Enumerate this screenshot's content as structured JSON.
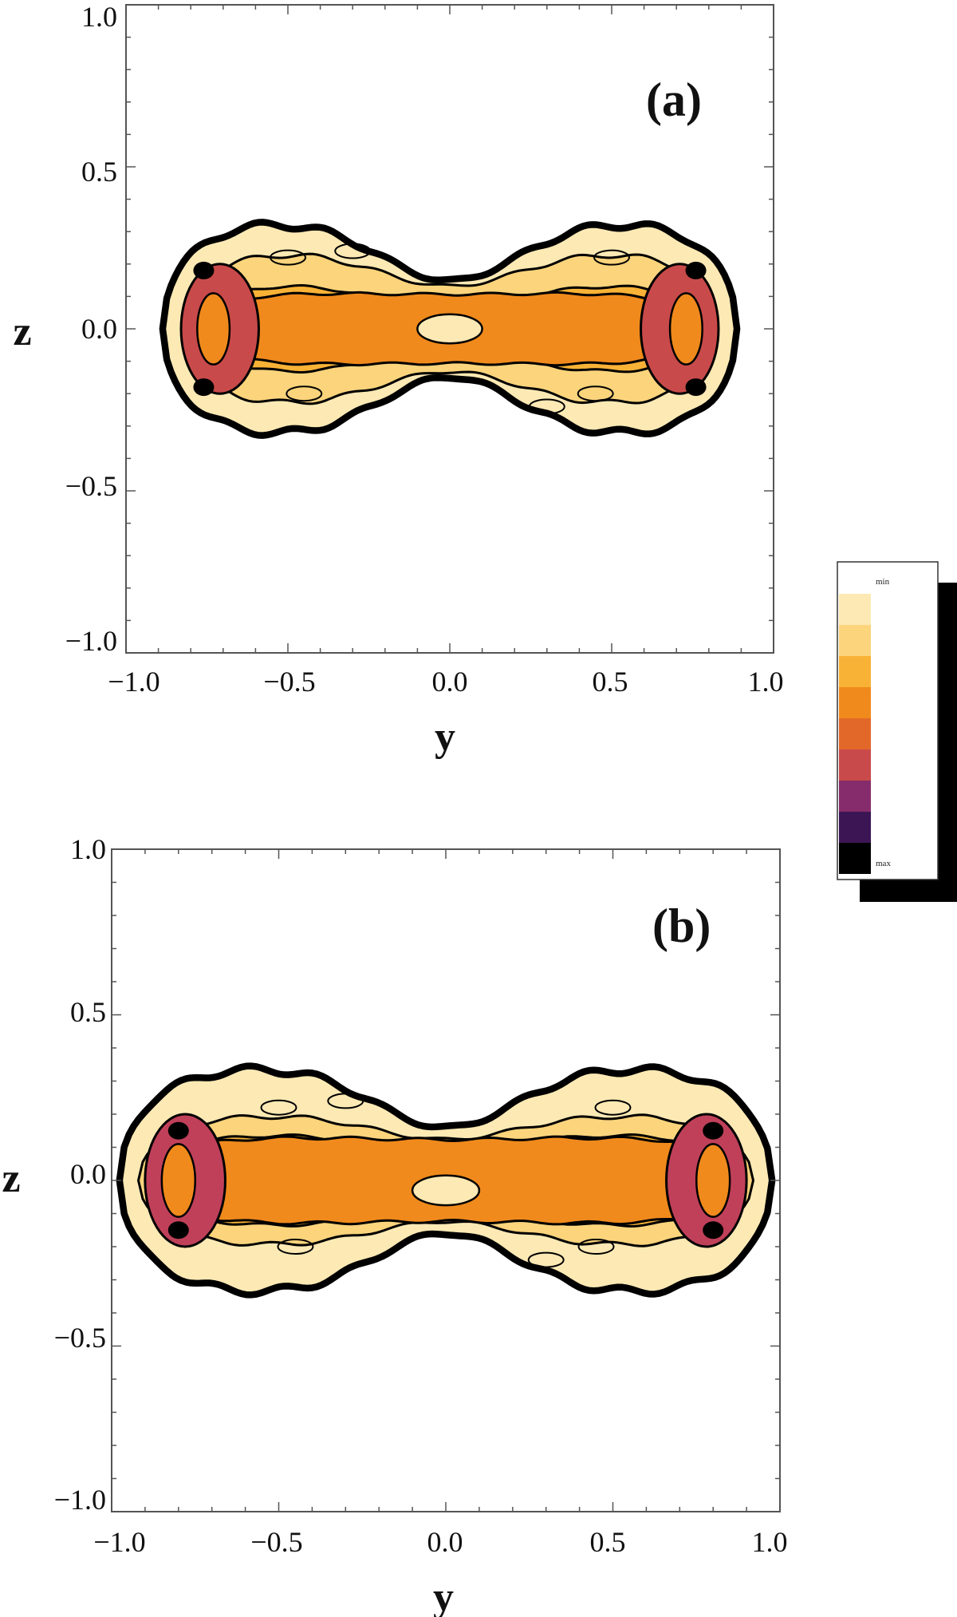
{
  "chart_data": [
    {
      "type": "heatmap",
      "panel_label": "(a)",
      "xlabel": "y",
      "ylabel": "z",
      "xlim": [
        -1.0,
        1.0
      ],
      "ylim": [
        -1.0,
        1.0
      ],
      "xticks": [
        "−1.0",
        "−0.5",
        "0.0",
        "0.5",
        "1.0"
      ],
      "yticks": [
        "−1.0",
        "−0.5",
        "0.0",
        "0.5",
        "1.0"
      ],
      "extent": {
        "y": [
          -0.88,
          0.88
        ],
        "z": [
          -0.33,
          0.33
        ]
      },
      "levels": [
        {
          "level": 1,
          "color": "#fde9b4",
          "hw": 0.88,
          "hz": 0.33,
          "pinch": 0.43
        },
        {
          "level": 2,
          "color": "#fbd47c",
          "hw": 0.82,
          "hz": 0.24,
          "pinch": 0.55
        },
        {
          "level": 3,
          "color": "#f8b236",
          "hw": 0.78,
          "hz": 0.14,
          "pinch": 0.45
        },
        {
          "level": 4,
          "color": "#f08a1c",
          "hw": 0.77,
          "hz": 0.11,
          "pinch": 0.97
        },
        {
          "level": 6,
          "color": "#c94a4a",
          "hw": 0.81,
          "hz": 0.2,
          "pinch": 1.0,
          "lobes": true
        }
      ],
      "max_spots": [
        {
          "y": -0.76,
          "z": 0.18
        },
        {
          "y": -0.76,
          "z": -0.18
        },
        {
          "y": 0.76,
          "z": 0.18
        },
        {
          "y": 0.76,
          "z": -0.18
        }
      ],
      "center_min": {
        "y": 0.0,
        "z": 0.0
      }
    },
    {
      "type": "heatmap",
      "panel_label": "(b)",
      "xlabel": "y",
      "ylabel": "z",
      "xlim": [
        -1.0,
        1.0
      ],
      "ylim": [
        -1.0,
        1.0
      ],
      "xticks": [
        "−1.0",
        "−0.5",
        "0.0",
        "0.5",
        "1.0"
      ],
      "yticks": [
        "−1.0",
        "−0.5",
        "0.0",
        "0.5",
        "1.0"
      ],
      "extent": {
        "y": [
          -0.98,
          0.98
        ],
        "z": [
          -0.35,
          0.35
        ]
      },
      "levels": [
        {
          "level": 1,
          "color": "#fde9b4",
          "hw": 0.97,
          "hz": 0.34,
          "pinch": 0.45
        },
        {
          "level": 2,
          "color": "#fbd47c",
          "hw": 0.92,
          "hz": 0.2,
          "pinch": 0.62
        },
        {
          "level": 3,
          "color": "#f8b236",
          "hw": 0.88,
          "hz": 0.14,
          "pinch": 0.65
        },
        {
          "level": 4,
          "color": "#f08a1c",
          "hw": 0.9,
          "hz": 0.13,
          "pinch": 0.95
        },
        {
          "level": 6,
          "color": "#c0405a",
          "hw": 0.88,
          "hz": 0.2,
          "pinch": 1.0,
          "lobes": true
        }
      ],
      "max_spots": [
        {
          "y": -0.8,
          "z": 0.15
        },
        {
          "y": -0.8,
          "z": -0.15
        },
        {
          "y": 0.8,
          "z": 0.15
        },
        {
          "y": 0.8,
          "z": -0.15
        }
      ],
      "center_min": {
        "y": 0.0,
        "z": -0.03
      }
    }
  ],
  "legend": {
    "min_label": "min",
    "max_label": "max",
    "colors": [
      "#fde9b4",
      "#fbd47c",
      "#f8b236",
      "#f08a1c",
      "#e2682a",
      "#c94a4a",
      "#862c6c",
      "#3c1654",
      "#000000"
    ]
  }
}
